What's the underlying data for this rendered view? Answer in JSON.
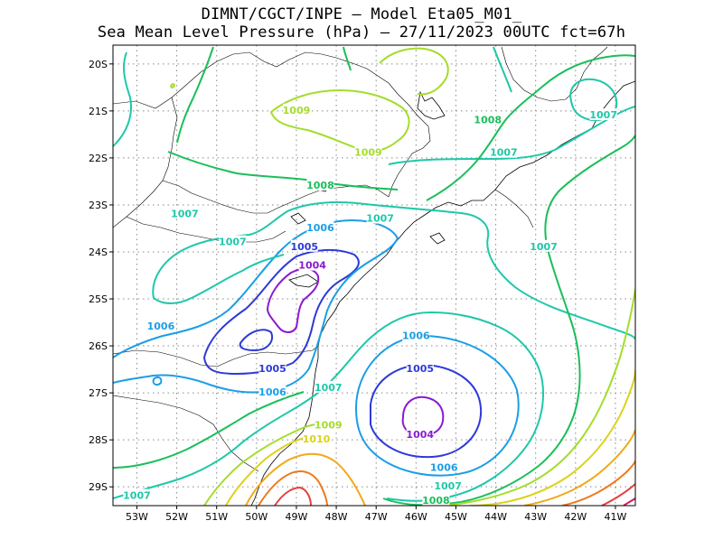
{
  "title": {
    "line1": "DIMNT/CGCT/INPE –  Model Eta05_M01_",
    "line2": "Sea Mean Level Pressure (hPa) – 27/11/2023 00UTC fct=67h"
  },
  "chart_data": {
    "type": "contour",
    "lon_range": [
      -53.6,
      -40.5
    ],
    "lat_range": [
      -29.4,
      -19.6
    ],
    "x_ticks": [
      "53W",
      "52W",
      "51W",
      "50W",
      "49W",
      "48W",
      "47W",
      "46W",
      "45W",
      "44W",
      "43W",
      "42W",
      "41W"
    ],
    "y_ticks": [
      "20S",
      "21S",
      "22S",
      "23S",
      "24S",
      "25S",
      "26S",
      "27S",
      "28S",
      "29S"
    ],
    "grid": true,
    "levels": [
      {
        "value": 1004,
        "label": "1004",
        "color": "#8a1ad0"
      },
      {
        "value": 1005,
        "label": "1005",
        "color": "#2d3ad8"
      },
      {
        "value": 1006,
        "label": "1006",
        "color": "#1a9ee6"
      },
      {
        "value": 1007,
        "label": "1007",
        "color": "#1ec8a8"
      },
      {
        "value": 1008,
        "label": "1008",
        "color": "#1abf5a"
      },
      {
        "value": 1009,
        "label": "1009",
        "color": "#a5dc2c"
      },
      {
        "value": 1010,
        "label": "1010",
        "color": "#dcd21a"
      },
      {
        "value": 1011,
        "label": "",
        "color": "#f0aa1a"
      },
      {
        "value": 1012,
        "label": "",
        "color": "#ee7a1e"
      },
      {
        "value": 1013,
        "label": "",
        "color": "#e84040"
      },
      {
        "value": 1014,
        "label": "",
        "color": "#d81a6a"
      }
    ],
    "minima": [
      {
        "label": "1004",
        "lon": -45.9,
        "lat": -27.9
      },
      {
        "label": "1004",
        "lon": -48.6,
        "lat": -24.3
      }
    ]
  }
}
